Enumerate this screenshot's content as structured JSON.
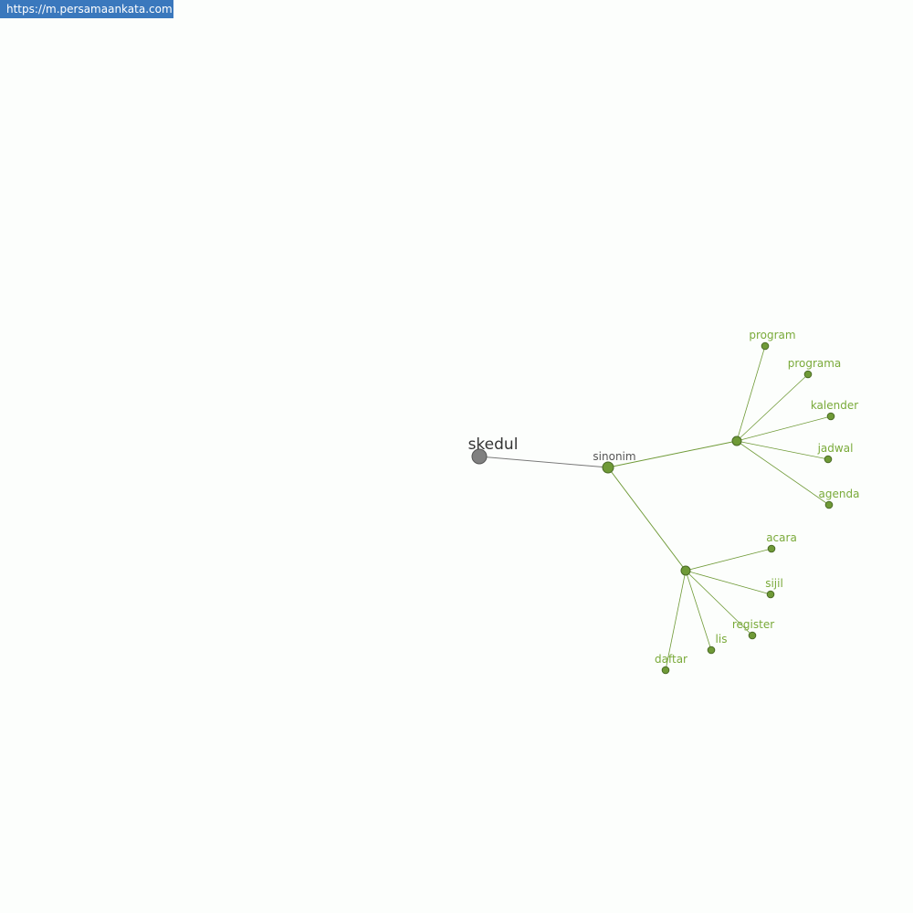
{
  "site_url": "https://m.persamaankata.com",
  "colors": {
    "accent": "#6f9a37",
    "root": "#808080",
    "label_green": "#7aaa3a",
    "badge": "#3a78bd"
  },
  "graph": {
    "root": "skedul",
    "relation": "sinonim",
    "groups": [
      [
        "program",
        "programa",
        "kalender",
        "jadwal",
        "agenda"
      ],
      [
        "acara",
        "sijil",
        "register",
        "lis",
        "daftar"
      ]
    ]
  }
}
